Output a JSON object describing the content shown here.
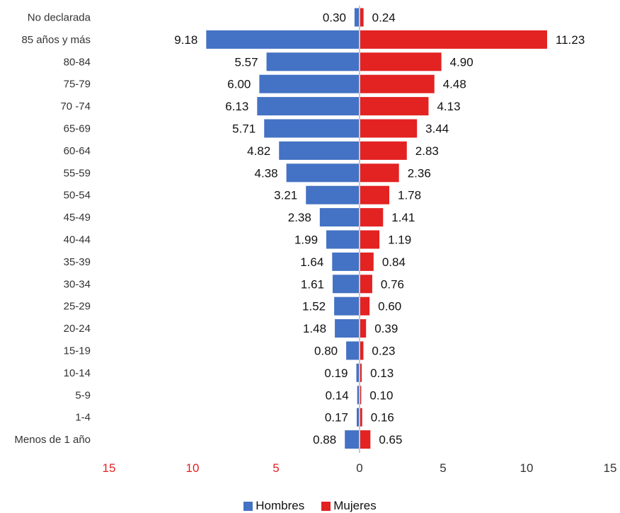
{
  "chart_data": {
    "type": "bar",
    "orientation": "horizontal",
    "layout": "population-pyramid",
    "categories": [
      "No declarada",
      "85 años y más",
      "80-84",
      "75-79",
      "70 -74",
      "65-69",
      "60-64",
      "55-59",
      "50-54",
      "45-49",
      "40-44",
      "35-39",
      "30-34",
      "25-29",
      "20-24",
      "15-19",
      "10-14",
      "5-9",
      "1-4",
      "Menos de 1 año"
    ],
    "series": [
      {
        "name": "Hombres",
        "side": "left",
        "color": "#4472c4",
        "values": [
          0.3,
          9.18,
          5.57,
          6.0,
          6.13,
          5.71,
          4.82,
          4.38,
          3.21,
          2.38,
          1.99,
          1.64,
          1.61,
          1.52,
          1.48,
          0.8,
          0.19,
          0.14,
          0.17,
          0.88
        ],
        "labels": [
          "0.30",
          "9.18",
          "5.57",
          "6.00",
          "6.13",
          "5.71",
          "4.82",
          "4.38",
          "3.21",
          "2.38",
          "1.99",
          "1.64",
          "1.61",
          "1.52",
          "1.48",
          "0.80",
          "0.19",
          "0.14",
          "0.17",
          "0.88"
        ]
      },
      {
        "name": "Mujeres",
        "side": "right",
        "color": "#e32222",
        "values": [
          0.24,
          11.23,
          4.9,
          4.48,
          4.13,
          3.44,
          2.83,
          2.36,
          1.78,
          1.41,
          1.19,
          0.84,
          0.76,
          0.6,
          0.39,
          0.23,
          0.13,
          0.1,
          0.16,
          0.65
        ],
        "labels": [
          "0.24",
          "11.23",
          "4.90",
          "4.48",
          "4.13",
          "3.44",
          "2.83",
          "2.36",
          "1.78",
          "1.41",
          "1.19",
          "0.84",
          "0.76",
          "0.60",
          "0.39",
          "0.23",
          "0.13",
          "0.10",
          "0.16",
          "0.65"
        ]
      }
    ],
    "xlim": [
      -15,
      15
    ],
    "x_ticks": [
      {
        "value": -15,
        "label": "15"
      },
      {
        "value": -10,
        "label": "10"
      },
      {
        "value": -5,
        "label": "5"
      },
      {
        "value": 0,
        "label": "0"
      },
      {
        "value": 5,
        "label": "5"
      },
      {
        "value": 10,
        "label": "10"
      },
      {
        "value": 15,
        "label": "15"
      }
    ],
    "tick_colors": {
      "left": "#e32222",
      "right": "#333333"
    },
    "center_line_color": "#c8c8c8",
    "grid": false,
    "legend_position": "bottom-center",
    "title": "",
    "xlabel": "",
    "ylabel": ""
  }
}
